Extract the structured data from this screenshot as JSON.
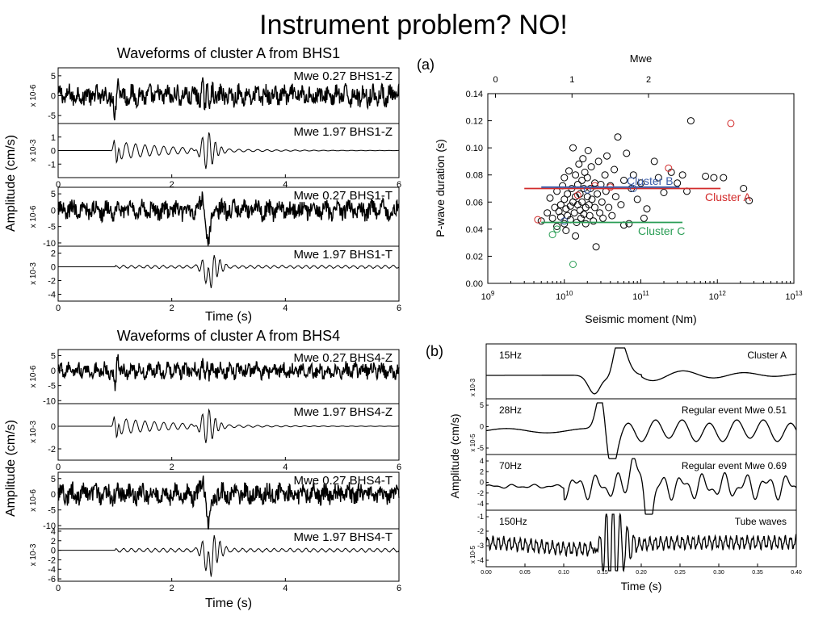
{
  "slide": {
    "title": "Instrument problem? NO!"
  },
  "chart_data": [
    {
      "type": "line",
      "title": "Waveforms of cluster A from BHS1",
      "xlabel": "Time (s)",
      "ylabel": "Amplitude (cm/s)",
      "xlim": [
        0,
        6
      ],
      "x_ticks": [
        "0",
        "2",
        "4",
        "6"
      ],
      "panels": [
        {
          "label": "Mwe 0.27 BHS1-Z",
          "scale": "x 10-6",
          "ylim": [
            -7,
            7
          ],
          "yticks": [
            "5",
            "0",
            "-5"
          ]
        },
        {
          "label": "Mwe 1.97 BHS1-Z",
          "scale": "x 10-3",
          "ylim": [
            -2,
            2
          ],
          "yticks": [
            "1",
            "0",
            "-1"
          ]
        },
        {
          "label": "Mwe 0.27 BHS1-T",
          "scale": "x 10-6",
          "ylim": [
            -11,
            7
          ],
          "yticks": [
            "5",
            "0",
            "-5",
            "-10"
          ]
        },
        {
          "label": "Mwe 1.97 BHS1-T",
          "scale": "x 10-3",
          "ylim": [
            -5,
            3
          ],
          "yticks": [
            "2",
            "0",
            "-2",
            "-4"
          ]
        }
      ]
    },
    {
      "type": "line",
      "title": "Waveforms of cluster A from BHS4",
      "xlabel": "Time (s)",
      "ylabel": "Amplitude (cm/s)",
      "xlim": [
        0,
        6
      ],
      "x_ticks": [
        "0",
        "2",
        "4",
        "6"
      ],
      "panels": [
        {
          "label": "Mwe 0.27 BHS4-Z",
          "scale": "x 10-6",
          "ylim": [
            -11,
            7
          ],
          "yticks": [
            "5",
            "0",
            "-5",
            "-10"
          ]
        },
        {
          "label": "Mwe 1.97 BHS4-Z",
          "scale": "x 10-3",
          "ylim": [
            -3,
            2
          ],
          "yticks": [
            "0",
            "-2"
          ]
        },
        {
          "label": "Mwe 0.27 BHS4-T",
          "scale": "x 10-6",
          "ylim": [
            -11,
            7
          ],
          "yticks": [
            "5",
            "0",
            "-5",
            "-10"
          ]
        },
        {
          "label": "Mwe 1.97 BHS4-T",
          "scale": "x 10-3",
          "ylim": [
            -6.5,
            4.5
          ],
          "yticks": [
            "4",
            "2",
            "0",
            "-2",
            "-4",
            "-6"
          ]
        }
      ]
    },
    {
      "type": "scatter",
      "panel_label": "(a)",
      "xlabel": "Seismic moment (Nm)",
      "ylabel": "P-wave duration (s)",
      "top_axis_label": "Mwe",
      "x_scale": "log",
      "xlim": [
        1000000000.0,
        10000000000000.0
      ],
      "ylim": [
        0,
        0.14
      ],
      "x_ticks": [
        {
          "v": 1000000000.0,
          "b": "10",
          "e": "9"
        },
        {
          "v": 10000000000.0,
          "b": "10",
          "e": "10"
        },
        {
          "v": 100000000000.0,
          "b": "10",
          "e": "11"
        },
        {
          "v": 1000000000000.0,
          "b": "10",
          "e": "12"
        },
        {
          "v": 10000000000000.0,
          "b": "10",
          "e": "13"
        }
      ],
      "y_ticks": [
        "0.00",
        "0.02",
        "0.04",
        "0.06",
        "0.08",
        "0.10",
        "0.12",
        "0.14"
      ],
      "top_ticks": [
        {
          "label": "0",
          "moment": 1260000000.0
        },
        {
          "label": "1",
          "moment": 12600000000.0
        },
        {
          "label": "2",
          "moment": 126000000000.0
        }
      ],
      "series": [
        {
          "points": [
            [
              5000000000.0,
              0.046
            ],
            [
              6000000000.0,
              0.052
            ],
            [
              6500000000.0,
              0.063
            ],
            [
              7000000000.0,
              0.048
            ],
            [
              7500000000.0,
              0.056
            ],
            [
              8000000000.0,
              0.068
            ],
            [
              8000000000.0,
              0.042
            ],
            [
              8500000000.0,
              0.053
            ],
            [
              9000000000.0,
              0.058
            ],
            [
              9000000000.0,
              0.049
            ],
            [
              9500000000.0,
              0.072
            ],
            [
              10000000000.0,
              0.044
            ],
            [
              10000000000.0,
              0.062
            ],
            [
              10000000000.0,
              0.078
            ],
            [
              10500000000.0,
              0.055
            ],
            [
              11000000000.0,
              0.05
            ],
            [
              11000000000.0,
              0.066
            ],
            [
              11500000000.0,
              0.083
            ],
            [
              12000000000.0,
              0.057
            ],
            [
              12000000000.0,
              0.047
            ],
            [
              12500000000.0,
              0.07
            ],
            [
              13000000000.0,
              0.1
            ],
            [
              13000000000.0,
              0.06
            ],
            [
              13500000000.0,
              0.052
            ],
            [
              14000000000.0,
              0.064
            ],
            [
              14000000000.0,
              0.08
            ],
            [
              14500000000.0,
              0.045
            ],
            [
              15000000000.0,
              0.058
            ],
            [
              15000000000.0,
              0.073
            ],
            [
              15500000000.0,
              0.088
            ],
            [
              16000000000.0,
              0.054
            ],
            [
              16000000000.0,
              0.066
            ],
            [
              16500000000.0,
              0.048
            ],
            [
              17000000000.0,
              0.076
            ],
            [
              17000000000.0,
              0.06
            ],
            [
              17500000000.0,
              0.092
            ],
            [
              18000000000.0,
              0.051
            ],
            [
              18000000000.0,
              0.07
            ],
            [
              18500000000.0,
              0.082
            ],
            [
              19000000000.0,
              0.056
            ],
            [
              19000000000.0,
              0.044
            ],
            [
              20000000000.0,
              0.064
            ],
            [
              20000000000.0,
              0.078
            ],
            [
              20500000000.0,
              0.098
            ],
            [
              21000000000.0,
              0.058
            ],
            [
              21500000000.0,
              0.05
            ],
            [
              22000000000.0,
              0.07
            ],
            [
              22500000000.0,
              0.086
            ],
            [
              23000000000.0,
              0.062
            ],
            [
              24000000000.0,
              0.046
            ],
            [
              25000000000.0,
              0.074
            ],
            [
              25000000000.0,
              0.056
            ],
            [
              26000000000.0,
              0.027
            ],
            [
              27000000000.0,
              0.066
            ],
            [
              28000000000.0,
              0.09
            ],
            [
              29000000000.0,
              0.052
            ],
            [
              30000000000.0,
              0.073
            ],
            [
              31000000000.0,
              0.06
            ],
            [
              32000000000.0,
              0.048
            ],
            [
              34000000000.0,
              0.08
            ],
            [
              35000000000.0,
              0.068
            ],
            [
              36000000000.0,
              0.094
            ],
            [
              38000000000.0,
              0.056
            ],
            [
              40000000000.0,
              0.072
            ],
            [
              42000000000.0,
              0.05
            ],
            [
              45000000000.0,
              0.084
            ],
            [
              47000000000.0,
              0.064
            ],
            [
              50000000000.0,
              0.108
            ],
            [
              55000000000.0,
              0.058
            ],
            [
              60000000000.0,
              0.076
            ],
            [
              65000000000.0,
              0.096
            ],
            [
              70000000000.0,
              0.044
            ],
            [
              75000000000.0,
              0.07
            ],
            [
              80000000000.0,
              0.08
            ],
            [
              90000000000.0,
              0.062
            ],
            [
              100000000000.0,
              0.074
            ],
            [
              120000000000.0,
              0.055
            ],
            [
              150000000000.0,
              0.09
            ],
            [
              170000000000.0,
              0.078
            ],
            [
              200000000000.0,
              0.067
            ],
            [
              250000000000.0,
              0.082
            ],
            [
              300000000000.0,
              0.074
            ],
            [
              350000000000.0,
              0.08
            ],
            [
              400000000000.0,
              0.068
            ],
            [
              450000000000.0,
              0.12
            ],
            [
              700000000000.0,
              0.079
            ],
            [
              900000000000.0,
              0.078
            ],
            [
              1200000000000.0,
              0.078
            ],
            [
              2200000000000.0,
              0.07
            ],
            [
              2600000000000.0,
              0.061
            ],
            [
              10500000000.0,
              0.039
            ],
            [
              14000000000.0,
              0.035
            ],
            [
              110000000000.0,
              0.048
            ],
            [
              60000000000.0,
              0.043
            ]
          ],
          "color": "#000000"
        },
        {
          "name": "Cluster A",
          "points": [
            [
              4500000000.0,
              0.047
            ],
            [
              15000000000.0,
              0.065
            ],
            [
              25000000000.0,
              0.072
            ],
            [
              40000000000.0,
              0.071
            ],
            [
              230000000000.0,
              0.085
            ],
            [
              1500000000000.0,
              0.118
            ]
          ],
          "color": "#d22b2b",
          "line": {
            "x": [
              3000000000.0,
              1100000000000.0
            ],
            "y": 0.07
          }
        },
        {
          "name": "Cluster B",
          "points": [
            [
              10000000000.0,
              0.046
            ],
            [
              20000000000.0,
              0.069
            ],
            [
              80000000000.0,
              0.07
            ]
          ],
          "color": "#3a5ca8",
          "line": {
            "x": [
              5000000000.0,
              320000000000.0
            ],
            "y": 0.071
          }
        },
        {
          "name": "Cluster C",
          "points": [
            [
              7000000000.0,
              0.036
            ],
            [
              13000000000.0,
              0.014
            ],
            [
              8000000000.0,
              0.04
            ]
          ],
          "color": "#2a9d55",
          "line": {
            "x": [
              5000000000.0,
              350000000000.0
            ],
            "y": 0.045
          }
        }
      ]
    },
    {
      "type": "line",
      "panel_label": "(b)",
      "xlabel": "Time (s)",
      "ylabel": "Amplitude (cm/s)",
      "xlim": [
        0,
        0.4
      ],
      "x_ticks": [
        "0.00",
        "0.05",
        "0.10",
        "0.15",
        "0.20",
        "0.25",
        "0.30",
        "0.35",
        "0.40"
      ],
      "panels": [
        {
          "freq": "15Hz",
          "label": "Cluster A",
          "scale": "x 10-3",
          "yticks": []
        },
        {
          "freq": "28Hz",
          "label": "Regular event Mwe 0.51",
          "scale": "x 10-5",
          "yticks": [
            "5",
            "0",
            "-5"
          ]
        },
        {
          "freq": "70Hz",
          "label": "Regular event Mwe 0.69",
          "scale": "",
          "yticks": [
            "4",
            "2",
            "0",
            "-2",
            "-4"
          ]
        },
        {
          "freq": "150Hz",
          "label": "Tube waves",
          "scale": "x 10-5",
          "yticks": [
            "-1",
            "-2",
            "-3",
            "-4"
          ]
        }
      ]
    }
  ]
}
